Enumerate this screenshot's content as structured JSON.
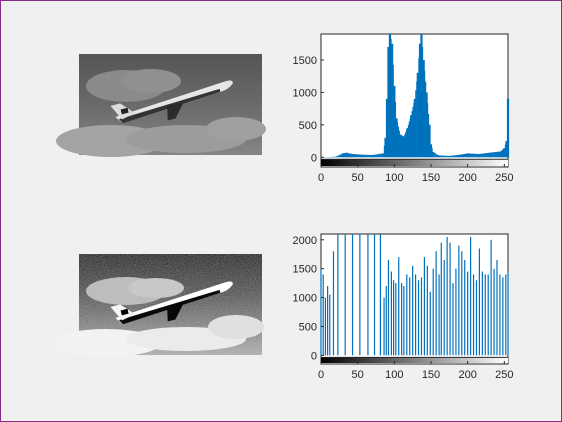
{
  "colors": {
    "background": "#f0f0f0",
    "axes_bg": "#ffffff",
    "axis": "#262626",
    "series": "#0072bd"
  },
  "icons": [
    "airplane-photo-original",
    "airplane-photo-equalized"
  ],
  "chart_data": [
    {
      "type": "bar",
      "name": "histogram-original",
      "xlim": [
        0,
        255
      ],
      "ylim": [
        -150,
        1900
      ],
      "xticks": [
        0,
        50,
        100,
        150,
        200,
        250
      ],
      "yticks": [
        0,
        500,
        1000,
        1500
      ],
      "grid": false,
      "colorbar": "grayscale",
      "bins": [
        {
          "x": 0,
          "y": 0
        },
        {
          "x": 20,
          "y": 8
        },
        {
          "x": 30,
          "y": 60
        },
        {
          "x": 35,
          "y": 70
        },
        {
          "x": 40,
          "y": 55
        },
        {
          "x": 55,
          "y": 40
        },
        {
          "x": 70,
          "y": 35
        },
        {
          "x": 85,
          "y": 60
        },
        {
          "x": 88,
          "y": 300
        },
        {
          "x": 90,
          "y": 900
        },
        {
          "x": 92,
          "y": 1700
        },
        {
          "x": 94,
          "y": 1900
        },
        {
          "x": 97,
          "y": 1750
        },
        {
          "x": 100,
          "y": 1100
        },
        {
          "x": 103,
          "y": 600
        },
        {
          "x": 108,
          "y": 350
        },
        {
          "x": 113,
          "y": 320
        },
        {
          "x": 118,
          "y": 450
        },
        {
          "x": 123,
          "y": 650
        },
        {
          "x": 128,
          "y": 900
        },
        {
          "x": 132,
          "y": 1300
        },
        {
          "x": 135,
          "y": 1750
        },
        {
          "x": 137,
          "y": 1900
        },
        {
          "x": 140,
          "y": 1500
        },
        {
          "x": 144,
          "y": 1000
        },
        {
          "x": 148,
          "y": 500
        },
        {
          "x": 150,
          "y": 200
        },
        {
          "x": 153,
          "y": 80
        },
        {
          "x": 160,
          "y": 30
        },
        {
          "x": 175,
          "y": 20
        },
        {
          "x": 190,
          "y": 40
        },
        {
          "x": 200,
          "y": 60
        },
        {
          "x": 215,
          "y": 50
        },
        {
          "x": 230,
          "y": 70
        },
        {
          "x": 245,
          "y": 90
        },
        {
          "x": 250,
          "y": 140
        },
        {
          "x": 253,
          "y": 250
        },
        {
          "x": 255,
          "y": 900
        }
      ]
    },
    {
      "type": "bar",
      "name": "histogram-equalized",
      "xlim": [
        0,
        255
      ],
      "ylim": [
        -150,
        2100
      ],
      "xticks": [
        0,
        50,
        100,
        150,
        200,
        250
      ],
      "yticks": [
        0,
        500,
        1000,
        1500,
        2000
      ],
      "grid": false,
      "colorbar": "grayscale",
      "bins": [
        {
          "x": 0,
          "y": 1500
        },
        {
          "x": 3,
          "y": 1400
        },
        {
          "x": 6,
          "y": 1000
        },
        {
          "x": 9,
          "y": 1200
        },
        {
          "x": 12,
          "y": 1050
        },
        {
          "x": 17,
          "y": 1800
        },
        {
          "x": 23,
          "y": 2100
        },
        {
          "x": 33,
          "y": 2100
        },
        {
          "x": 43,
          "y": 2100
        },
        {
          "x": 53,
          "y": 2100
        },
        {
          "x": 64,
          "y": 2100
        },
        {
          "x": 73,
          "y": 2100
        },
        {
          "x": 81,
          "y": 2100
        },
        {
          "x": 86,
          "y": 1000
        },
        {
          "x": 89,
          "y": 1200
        },
        {
          "x": 92,
          "y": 1650
        },
        {
          "x": 96,
          "y": 1450
        },
        {
          "x": 99,
          "y": 1300
        },
        {
          "x": 102,
          "y": 1250
        },
        {
          "x": 106,
          "y": 1700
        },
        {
          "x": 110,
          "y": 1250
        },
        {
          "x": 113,
          "y": 1200
        },
        {
          "x": 117,
          "y": 1400
        },
        {
          "x": 121,
          "y": 1350
        },
        {
          "x": 125,
          "y": 1550
        },
        {
          "x": 129,
          "y": 1400
        },
        {
          "x": 133,
          "y": 1300
        },
        {
          "x": 137,
          "y": 1350
        },
        {
          "x": 141,
          "y": 1700
        },
        {
          "x": 145,
          "y": 1550
        },
        {
          "x": 149,
          "y": 1100
        },
        {
          "x": 153,
          "y": 1500
        },
        {
          "x": 157,
          "y": 1800
        },
        {
          "x": 161,
          "y": 1400
        },
        {
          "x": 164,
          "y": 1950
        },
        {
          "x": 168,
          "y": 1650
        },
        {
          "x": 172,
          "y": 2050
        },
        {
          "x": 176,
          "y": 1950
        },
        {
          "x": 180,
          "y": 1250
        },
        {
          "x": 184,
          "y": 1500
        },
        {
          "x": 188,
          "y": 1900
        },
        {
          "x": 192,
          "y": 1800
        },
        {
          "x": 196,
          "y": 1650
        },
        {
          "x": 200,
          "y": 1450
        },
        {
          "x": 204,
          "y": 2050
        },
        {
          "x": 208,
          "y": 1400
        },
        {
          "x": 212,
          "y": 1300
        },
        {
          "x": 216,
          "y": 1850
        },
        {
          "x": 220,
          "y": 1450
        },
        {
          "x": 224,
          "y": 1400
        },
        {
          "x": 228,
          "y": 1400
        },
        {
          "x": 232,
          "y": 2000
        },
        {
          "x": 236,
          "y": 1500
        },
        {
          "x": 240,
          "y": 1650
        },
        {
          "x": 244,
          "y": 1400
        },
        {
          "x": 248,
          "y": 1350
        },
        {
          "x": 252,
          "y": 1400
        },
        {
          "x": 255,
          "y": 1450
        }
      ]
    }
  ]
}
